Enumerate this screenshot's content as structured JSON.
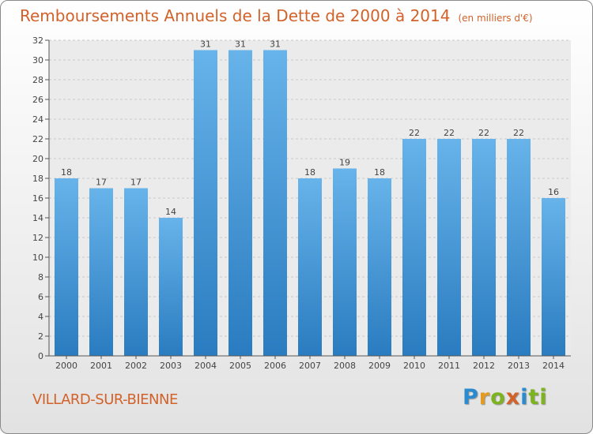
{
  "title": "Remboursements Annuels de la Dette de 2000 à 2014",
  "unit_label": "(en milliers d'€)",
  "commune": "VILLARD-SUR-BIENNE",
  "logo": {
    "letters": [
      "P",
      "r",
      "o",
      "x",
      "i",
      "ti"
    ]
  },
  "colors": {
    "title": "#d2622a",
    "bar_top": "#67b3ea",
    "bar_bottom": "#2a7cc0",
    "logo": "#2a8bd0"
  },
  "chart_data": {
    "type": "bar",
    "categories": [
      "2000",
      "2001",
      "2002",
      "2003",
      "2004",
      "2005",
      "2006",
      "2007",
      "2008",
      "2009",
      "2010",
      "2011",
      "2012",
      "2013",
      "2014"
    ],
    "values": [
      18,
      17,
      17,
      14,
      31,
      31,
      31,
      18,
      19,
      18,
      22,
      22,
      22,
      22,
      16
    ],
    "ylim": [
      0,
      32
    ],
    "yticks": [
      0,
      2,
      4,
      6,
      8,
      10,
      12,
      14,
      16,
      18,
      20,
      22,
      24,
      26,
      28,
      30,
      32
    ],
    "grid": true,
    "xlabel": "",
    "ylabel": ""
  }
}
